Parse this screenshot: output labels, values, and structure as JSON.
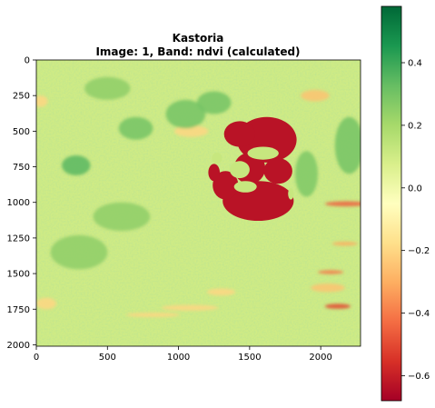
{
  "chart_data": {
    "type": "heatmap",
    "title": "Kastoria",
    "subtitle": "Image: 1, Band: ndvi (calculated)",
    "xlabel": "",
    "ylabel": "",
    "xlim": [
      0,
      2280
    ],
    "ylim": [
      2010,
      0
    ],
    "x_ticks": [
      0,
      500,
      1000,
      1500,
      2000
    ],
    "y_ticks": [
      0,
      250,
      500,
      750,
      1000,
      1250,
      1500,
      1750,
      2000
    ],
    "colormap": "RdYlGn",
    "colorbar": {
      "range": [
        -0.68,
        0.58
      ],
      "ticks": [
        0.4,
        0.2,
        0.0,
        -0.2,
        -0.4,
        -0.6
      ],
      "tick_labels": [
        "0.4",
        "0.2",
        "0.0",
        "−0.2",
        "−0.4",
        "−0.6"
      ]
    },
    "background_value": 0.1,
    "features": [
      {
        "kind": "lake-lobe",
        "value": -0.63,
        "cx": 1620,
        "cy": 560,
        "rx": 210,
        "ry": 160
      },
      {
        "kind": "lake-lobe",
        "value": -0.63,
        "cx": 1430,
        "cy": 520,
        "rx": 110,
        "ry": 90
      },
      {
        "kind": "lake-lobe",
        "value": -0.63,
        "cx": 1500,
        "cy": 760,
        "rx": 110,
        "ry": 110
      },
      {
        "kind": "lake-lobe",
        "value": -0.63,
        "cx": 1700,
        "cy": 780,
        "rx": 100,
        "ry": 90
      },
      {
        "kind": "lake-lobe",
        "value": -0.63,
        "cx": 1560,
        "cy": 990,
        "rx": 250,
        "ry": 140
      },
      {
        "kind": "lake-lobe",
        "value": -0.63,
        "cx": 1330,
        "cy": 880,
        "rx": 90,
        "ry": 100
      },
      {
        "kind": "lake-lobe",
        "value": -0.63,
        "cx": 1250,
        "cy": 790,
        "rx": 40,
        "ry": 60
      },
      {
        "kind": "land-inlet",
        "value": 0.12,
        "cx": 1430,
        "cy": 770,
        "rx": 70,
        "ry": 60
      },
      {
        "kind": "land-inlet",
        "value": 0.12,
        "cx": 1595,
        "cy": 655,
        "rx": 110,
        "ry": 45
      },
      {
        "kind": "land-inlet",
        "value": 0.12,
        "cx": 1470,
        "cy": 890,
        "rx": 80,
        "ry": 40
      },
      {
        "kind": "land-inlet",
        "value": 0.12,
        "cx": 1270,
        "cy": 690,
        "rx": 35,
        "ry": 40
      },
      {
        "kind": "land-inlet",
        "value": 0.12,
        "cx": 1790,
        "cy": 940,
        "rx": 20,
        "ry": 40
      },
      {
        "kind": "patch",
        "value": -0.45,
        "cx": 2180,
        "cy": 1010,
        "rx": 150,
        "ry": 18
      },
      {
        "kind": "patch",
        "value": -0.5,
        "cx": 2120,
        "cy": 1730,
        "rx": 90,
        "ry": 18
      },
      {
        "kind": "patch",
        "value": -0.4,
        "cx": 2070,
        "cy": 1490,
        "rx": 90,
        "ry": 14
      },
      {
        "kind": "patch",
        "value": -0.3,
        "cx": 2170,
        "cy": 1290,
        "rx": 90,
        "ry": 14
      },
      {
        "kind": "patch",
        "value": -0.2,
        "cx": 30,
        "cy": 290,
        "rx": 50,
        "ry": 40
      },
      {
        "kind": "patch",
        "value": -0.2,
        "cx": 70,
        "cy": 1710,
        "rx": 70,
        "ry": 40
      },
      {
        "kind": "patch",
        "value": -0.2,
        "cx": 1090,
        "cy": 500,
        "rx": 120,
        "ry": 40
      },
      {
        "kind": "patch",
        "value": -0.2,
        "cx": 1080,
        "cy": 1740,
        "rx": 200,
        "ry": 20
      },
      {
        "kind": "patch",
        "value": -0.2,
        "cx": 820,
        "cy": 1790,
        "rx": 190,
        "ry": 15
      },
      {
        "kind": "patch",
        "value": -0.25,
        "cx": 1960,
        "cy": 250,
        "rx": 100,
        "ry": 40
      },
      {
        "kind": "patch",
        "value": -0.25,
        "cx": 2050,
        "cy": 1600,
        "rx": 120,
        "ry": 30
      },
      {
        "kind": "patch",
        "value": -0.2,
        "cx": 1300,
        "cy": 1630,
        "rx": 100,
        "ry": 25
      },
      {
        "kind": "patch",
        "value": 0.35,
        "cx": 280,
        "cy": 740,
        "rx": 100,
        "ry": 70
      },
      {
        "kind": "patch",
        "value": 0.3,
        "cx": 700,
        "cy": 480,
        "rx": 120,
        "ry": 80
      },
      {
        "kind": "patch",
        "value": 0.3,
        "cx": 1050,
        "cy": 380,
        "rx": 140,
        "ry": 100
      },
      {
        "kind": "patch",
        "value": 0.3,
        "cx": 2200,
        "cy": 600,
        "rx": 100,
        "ry": 200
      },
      {
        "kind": "patch",
        "value": 0.25,
        "cx": 600,
        "cy": 1100,
        "rx": 200,
        "ry": 100
      },
      {
        "kind": "patch",
        "value": 0.28,
        "cx": 1900,
        "cy": 800,
        "rx": 80,
        "ry": 160
      },
      {
        "kind": "patch",
        "value": 0.25,
        "cx": 300,
        "cy": 1350,
        "rx": 200,
        "ry": 120
      },
      {
        "kind": "patch",
        "value": 0.3,
        "cx": 1250,
        "cy": 300,
        "rx": 120,
        "ry": 80
      },
      {
        "kind": "patch",
        "value": 0.25,
        "cx": 500,
        "cy": 200,
        "rx": 160,
        "ry": 80
      }
    ]
  }
}
